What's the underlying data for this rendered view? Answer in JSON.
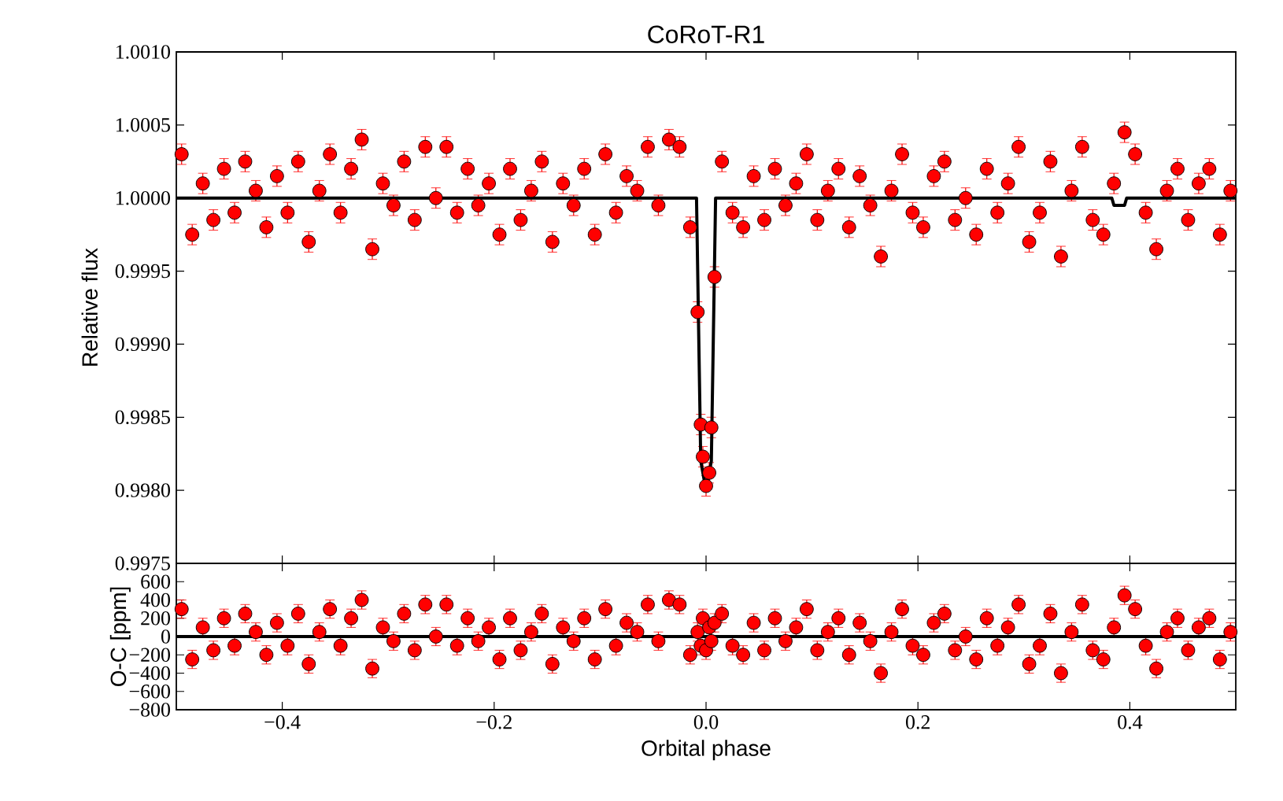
{
  "chart_data": [
    {
      "type": "scatter",
      "title": "CoRoT-R1",
      "ylabel": "Relative flux",
      "xlim": [
        -0.5,
        0.5
      ],
      "ylim": [
        0.9975,
        1.001
      ],
      "tick_labels": "y",
      "xticks": [
        {
          "value": -0.4,
          "label": null
        },
        {
          "value": -0.2,
          "label": null
        },
        {
          "value": 0.0,
          "label": null
        },
        {
          "value": 0.2,
          "label": null
        },
        {
          "value": 0.4,
          "label": null
        }
      ],
      "yticks": [
        {
          "value": 0.9975,
          "label": "0.9975"
        },
        {
          "value": 0.998,
          "label": "0.9980"
        },
        {
          "value": 0.9985,
          "label": "0.9985"
        },
        {
          "value": 0.999,
          "label": "0.9990"
        },
        {
          "value": 0.9995,
          "label": "0.9995"
        },
        {
          "value": 1.0,
          "label": "1.0000"
        },
        {
          "value": 1.0005,
          "label": "1.0005"
        },
        {
          "value": 1.001,
          "label": "1.0010"
        }
      ],
      "series": [
        {
          "color": "#ff0000",
          "marker": "circle",
          "x": [
            -0.495,
            -0.485,
            -0.475,
            -0.465,
            -0.455,
            -0.445,
            -0.435,
            -0.425,
            -0.415,
            -0.405,
            -0.395,
            -0.385,
            -0.375,
            -0.365,
            -0.355,
            -0.345,
            -0.335,
            -0.325,
            -0.315,
            -0.305,
            -0.295,
            -0.285,
            -0.275,
            -0.265,
            -0.255,
            -0.245,
            -0.235,
            -0.225,
            -0.215,
            -0.205,
            -0.195,
            -0.185,
            -0.175,
            -0.165,
            -0.155,
            -0.145,
            -0.135,
            -0.125,
            -0.115,
            -0.105,
            -0.095,
            -0.085,
            -0.075,
            -0.065,
            -0.055,
            -0.045,
            -0.035,
            -0.025,
            -0.015,
            -0.008,
            -0.005,
            -0.003,
            0.0,
            0.003,
            0.005,
            0.008,
            0.015,
            0.025,
            0.035,
            0.045,
            0.055,
            0.065,
            0.075,
            0.085,
            0.095,
            0.105,
            0.115,
            0.125,
            0.135,
            0.145,
            0.155,
            0.165,
            0.175,
            0.185,
            0.195,
            0.205,
            0.215,
            0.225,
            0.235,
            0.245,
            0.255,
            0.265,
            0.275,
            0.285,
            0.295,
            0.305,
            0.315,
            0.325,
            0.335,
            0.345,
            0.355,
            0.365,
            0.375,
            0.385,
            0.395,
            0.405,
            0.415,
            0.425,
            0.435,
            0.445,
            0.455,
            0.465,
            0.475,
            0.485,
            0.495
          ],
          "values": [
            1.0003,
            0.99975,
            1.0001,
            0.99985,
            1.0002,
            0.9999,
            1.00025,
            1.00005,
            0.9998,
            1.00015,
            0.9999,
            1.00025,
            0.9997,
            1.00005,
            1.0003,
            0.9999,
            1.0002,
            1.0004,
            0.99965,
            1.0001,
            0.99995,
            1.00025,
            0.99985,
            1.00035,
            1.0,
            1.00035,
            0.9999,
            1.0002,
            0.99995,
            1.0001,
            0.99975,
            1.0002,
            0.99985,
            1.00005,
            1.00025,
            0.9997,
            1.0001,
            0.99995,
            1.0002,
            0.99975,
            1.0003,
            0.9999,
            1.00015,
            1.00005,
            1.00035,
            0.99995,
            1.0004,
            1.00035,
            0.9998,
            0.99922,
            0.99845,
            0.99823,
            0.99803,
            0.99812,
            0.99843,
            0.99946,
            1.00025,
            0.9999,
            0.9998,
            1.00015,
            0.99985,
            1.0002,
            0.99995,
            1.0001,
            1.0003,
            0.99985,
            1.00005,
            1.0002,
            0.9998,
            1.00015,
            0.99995,
            0.9996,
            1.00005,
            1.0003,
            0.9999,
            0.9998,
            1.00015,
            1.00025,
            0.99985,
            1.0,
            0.99975,
            1.0002,
            0.9999,
            1.0001,
            1.00035,
            0.9997,
            0.9999,
            1.00025,
            0.9996,
            1.00005,
            1.00035,
            0.99985,
            0.99975,
            1.0001,
            1.00045,
            1.0003,
            0.9999,
            0.99965,
            1.00005,
            1.0002,
            0.99985,
            1.0001,
            1.0002,
            0.99975,
            1.00005
          ],
          "errors": [
            7e-05,
            7e-05,
            7e-05,
            7e-05,
            7e-05,
            7e-05,
            7e-05,
            7e-05,
            7e-05,
            7e-05,
            7e-05,
            7e-05,
            7e-05,
            7e-05,
            7e-05,
            7e-05,
            7e-05,
            7e-05,
            7e-05,
            7e-05,
            7e-05,
            7e-05,
            7e-05,
            7e-05,
            7e-05,
            7e-05,
            7e-05,
            7e-05,
            7e-05,
            7e-05,
            7e-05,
            7e-05,
            7e-05,
            7e-05,
            7e-05,
            7e-05,
            7e-05,
            7e-05,
            7e-05,
            7e-05,
            7e-05,
            7e-05,
            7e-05,
            7e-05,
            7e-05,
            7e-05,
            7e-05,
            7e-05,
            7e-05,
            7e-05,
            7e-05,
            7e-05,
            7e-05,
            7e-05,
            7e-05,
            7e-05,
            7e-05,
            7e-05,
            7e-05,
            7e-05,
            7e-05,
            7e-05,
            7e-05,
            7e-05,
            7e-05,
            7e-05,
            7e-05,
            7e-05,
            7e-05,
            7e-05,
            7e-05,
            7e-05,
            7e-05,
            7e-05,
            7e-05,
            7e-05,
            7e-05,
            7e-05,
            7e-05,
            7e-05,
            7e-05,
            7e-05,
            7e-05,
            7e-05,
            7e-05,
            7e-05,
            7e-05,
            7e-05,
            7e-05,
            7e-05,
            7e-05,
            7e-05,
            7e-05,
            7e-05,
            7e-05,
            7e-05,
            7e-05,
            7e-05,
            7e-05,
            7e-05,
            7e-05,
            7e-05,
            7e-05,
            7e-05,
            7e-05
          ]
        },
        {
          "type": "line",
          "color": "#000000",
          "marker": "none",
          "x": [
            -0.5,
            -0.009,
            -0.005,
            0.0,
            0.005,
            0.009,
            0.383,
            0.385,
            0.395,
            0.397,
            0.5
          ],
          "values": [
            1.0,
            1.0,
            0.9982,
            0.998,
            0.9982,
            1.0,
            1.0,
            0.99995,
            0.99995,
            1.0,
            1.0
          ]
        }
      ]
    },
    {
      "type": "scatter",
      "xlabel": "Orbital phase",
      "ylabel": "O-C [ppm]",
      "xlim": [
        -0.5,
        0.5
      ],
      "ylim": [
        -800,
        800
      ],
      "xticks": [
        {
          "value": -0.4,
          "label": "−0.4"
        },
        {
          "value": -0.2,
          "label": "−0.2"
        },
        {
          "value": 0.0,
          "label": "0.0"
        },
        {
          "value": 0.2,
          "label": "0.2"
        },
        {
          "value": 0.4,
          "label": "0.4"
        }
      ],
      "yticks": [
        {
          "value": -800,
          "label": "−800"
        },
        {
          "value": -600,
          "label": "−600"
        },
        {
          "value": -400,
          "label": "−400"
        },
        {
          "value": -200,
          "label": "−200"
        },
        0,
        200,
        400,
        600,
        {
          "value": 800,
          "label": null
        }
      ],
      "series": [
        {
          "color": "#ff0000",
          "marker": "circle",
          "x": [
            -0.495,
            -0.485,
            -0.475,
            -0.465,
            -0.455,
            -0.445,
            -0.435,
            -0.425,
            -0.415,
            -0.405,
            -0.395,
            -0.385,
            -0.375,
            -0.365,
            -0.355,
            -0.345,
            -0.335,
            -0.325,
            -0.315,
            -0.305,
            -0.295,
            -0.285,
            -0.275,
            -0.265,
            -0.255,
            -0.245,
            -0.235,
            -0.225,
            -0.215,
            -0.205,
            -0.195,
            -0.185,
            -0.175,
            -0.165,
            -0.155,
            -0.145,
            -0.135,
            -0.125,
            -0.115,
            -0.105,
            -0.095,
            -0.085,
            -0.075,
            -0.065,
            -0.055,
            -0.045,
            -0.035,
            -0.025,
            -0.015,
            -0.008,
            -0.005,
            -0.003,
            0.0,
            0.003,
            0.005,
            0.008,
            0.015,
            0.025,
            0.035,
            0.045,
            0.055,
            0.065,
            0.075,
            0.085,
            0.095,
            0.105,
            0.115,
            0.125,
            0.135,
            0.145,
            0.155,
            0.165,
            0.175,
            0.185,
            0.195,
            0.205,
            0.215,
            0.225,
            0.235,
            0.245,
            0.255,
            0.265,
            0.275,
            0.285,
            0.295,
            0.305,
            0.315,
            0.325,
            0.335,
            0.345,
            0.355,
            0.365,
            0.375,
            0.385,
            0.395,
            0.405,
            0.415,
            0.425,
            0.435,
            0.445,
            0.455,
            0.465,
            0.475,
            0.485,
            0.495
          ],
          "values": [
            300,
            -250,
            100,
            -150,
            200,
            -100,
            250,
            50,
            -200,
            150,
            -100,
            250,
            -300,
            50,
            300,
            -100,
            200,
            400,
            -350,
            100,
            -50,
            250,
            -150,
            350,
            0,
            350,
            -100,
            200,
            -50,
            100,
            -250,
            200,
            -150,
            50,
            250,
            -300,
            100,
            -50,
            200,
            -250,
            300,
            -100,
            150,
            50,
            350,
            -50,
            400,
            350,
            -200,
            50,
            -100,
            200,
            -150,
            100,
            -50,
            150,
            250,
            -100,
            -200,
            150,
            -150,
            200,
            -50,
            100,
            300,
            -150,
            50,
            200,
            -200,
            150,
            -50,
            -400,
            50,
            300,
            -100,
            -200,
            150,
            250,
            -150,
            0,
            -250,
            200,
            -100,
            100,
            350,
            -300,
            -100,
            250,
            -400,
            50,
            350,
            -150,
            -250,
            100,
            450,
            300,
            -100,
            -350,
            50,
            200,
            -150,
            100,
            200,
            -250,
            50
          ],
          "errors": [
            100,
            100,
            100,
            100,
            100,
            100,
            100,
            100,
            100,
            100,
            100,
            100,
            100,
            100,
            100,
            100,
            100,
            100,
            100,
            100,
            100,
            100,
            100,
            100,
            100,
            100,
            100,
            100,
            100,
            100,
            100,
            100,
            100,
            100,
            100,
            100,
            100,
            100,
            100,
            100,
            100,
            100,
            100,
            100,
            100,
            100,
            100,
            100,
            100,
            100,
            100,
            100,
            100,
            100,
            100,
            100,
            100,
            100,
            100,
            100,
            100,
            100,
            100,
            100,
            100,
            100,
            100,
            100,
            100,
            100,
            100,
            100,
            100,
            100,
            100,
            100,
            100,
            100,
            100,
            100,
            100,
            100,
            100,
            100,
            100,
            100,
            100,
            100,
            100,
            100,
            100,
            100,
            100,
            100,
            100,
            100,
            100,
            100,
            100,
            100,
            100,
            100,
            100,
            100,
            100
          ]
        },
        {
          "type": "line",
          "color": "#000000",
          "marker": "none",
          "x": [
            -0.5,
            0.5
          ],
          "values": [
            0,
            0
          ]
        }
      ]
    }
  ]
}
